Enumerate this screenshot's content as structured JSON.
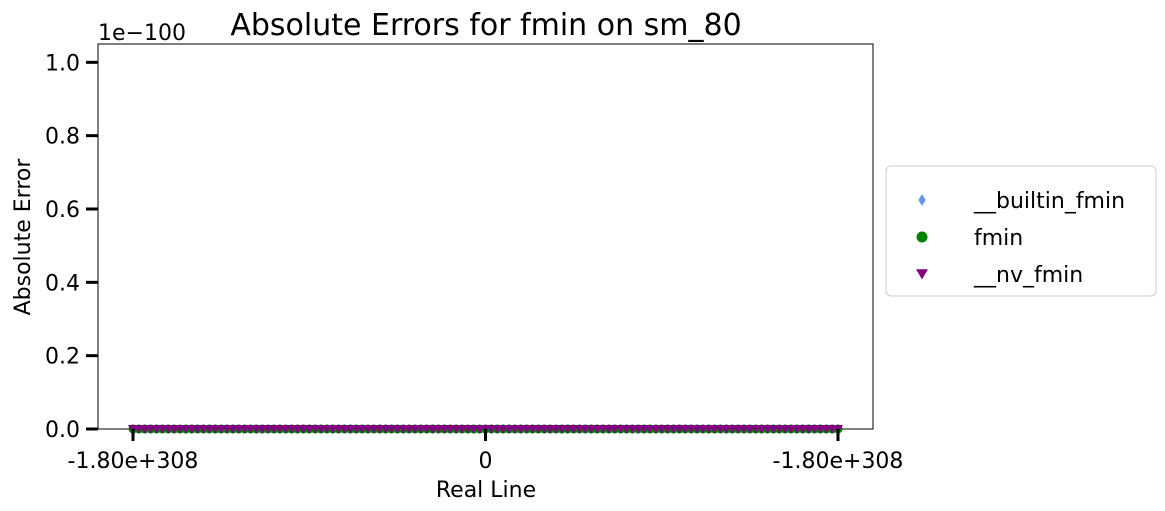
{
  "chart_data": {
    "type": "scatter",
    "title": "Absolute Errors for fmin on sm_80",
    "xlabel": "Real Line",
    "ylabel": "Absolute Error",
    "y_offset_label": "1e−100",
    "xlim": [
      -1.0,
      1.0
    ],
    "ylim": [
      0.0,
      1.05
    ],
    "y_ticks": [
      0.0,
      0.2,
      0.4,
      0.6,
      0.8,
      1.0
    ],
    "y_tick_labels": [
      "0.0",
      "0.2",
      "0.4",
      "0.6",
      "0.8",
      "1.0"
    ],
    "x_ticks": [
      -1.0,
      0.0,
      1.0
    ],
    "x_tick_labels": [
      "-1.80e+308",
      "0",
      "-1.80e+308"
    ],
    "grid": false,
    "legend_position": "outside-right",
    "series": [
      {
        "name": "__builtin_fmin",
        "marker": "diamond",
        "color": "#6495ED",
        "x_range": [
          -1.0,
          1.0
        ],
        "y": 0
      },
      {
        "name": "fmin",
        "marker": "circle",
        "color": "#008000",
        "x_range": [
          -1.0,
          1.0
        ],
        "y": 0
      },
      {
        "name": "__nv_fmin",
        "marker": "triangle-down",
        "color": "#800080",
        "x_range": [
          -1.0,
          1.0
        ],
        "y": 0
      }
    ]
  }
}
